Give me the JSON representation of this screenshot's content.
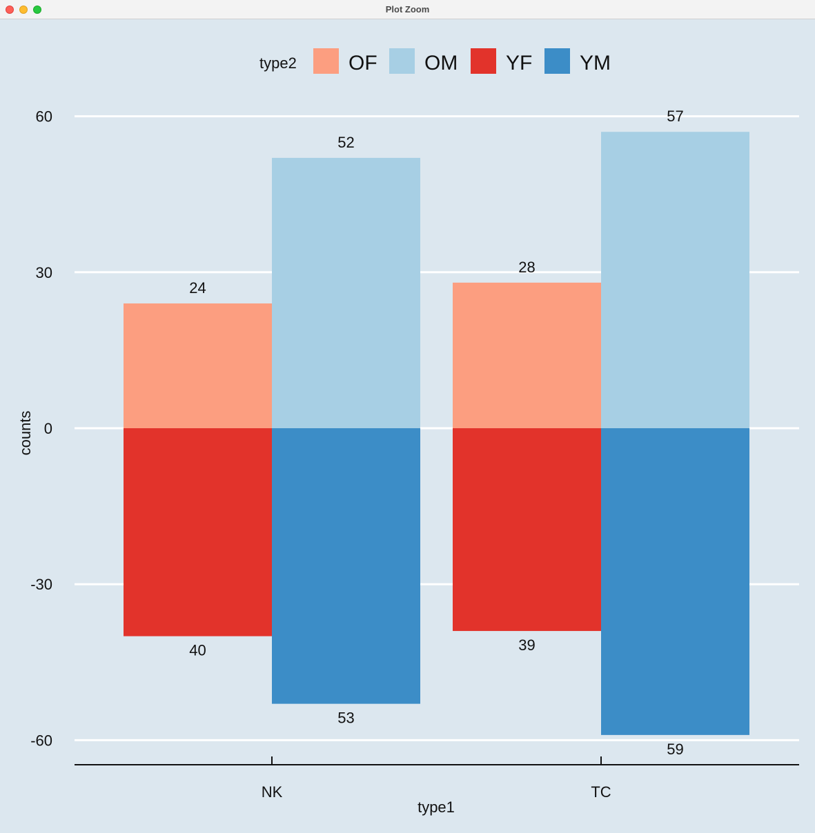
{
  "window": {
    "title": "Plot Zoom"
  },
  "colors": {
    "panel_bg": "#dce7ef",
    "gridline": "#ffffff",
    "OF": "#fc9e80",
    "OM": "#a7cfe4",
    "YF": "#e2332b",
    "YM": "#3c8dc7"
  },
  "chart_data": {
    "type": "bar",
    "xlabel": "type1",
    "ylabel": "counts",
    "categories": [
      "NK",
      "TC"
    ],
    "ylim": [
      -64,
      63
    ],
    "yticks": [
      -60,
      -30,
      0,
      30,
      60
    ],
    "ytick_labels": [
      "-60",
      "-30",
      "0",
      "30",
      "60"
    ],
    "grid": "horizontal major lines",
    "legend": {
      "title": "type2",
      "position": "top",
      "entries": [
        "OF",
        "OM",
        "YF",
        "YM"
      ]
    },
    "bars": [
      {
        "category": "NK",
        "series": "OF",
        "value": 24,
        "label": "24",
        "slot": 0
      },
      {
        "category": "NK",
        "series": "OM",
        "value": 52,
        "label": "52",
        "slot": 1
      },
      {
        "category": "NK",
        "series": "YF",
        "value": -40,
        "label": "40",
        "slot": 0
      },
      {
        "category": "NK",
        "series": "YM",
        "value": -53,
        "label": "53",
        "slot": 1
      },
      {
        "category": "TC",
        "series": "OF",
        "value": 28,
        "label": "28",
        "slot": 0
      },
      {
        "category": "TC",
        "series": "OM",
        "value": 57,
        "label": "57",
        "slot": 1
      },
      {
        "category": "TC",
        "series": "YF",
        "value": -39,
        "label": "39",
        "slot": 0
      },
      {
        "category": "TC",
        "series": "YM",
        "value": -59,
        "label": "59",
        "slot": 1
      }
    ]
  }
}
